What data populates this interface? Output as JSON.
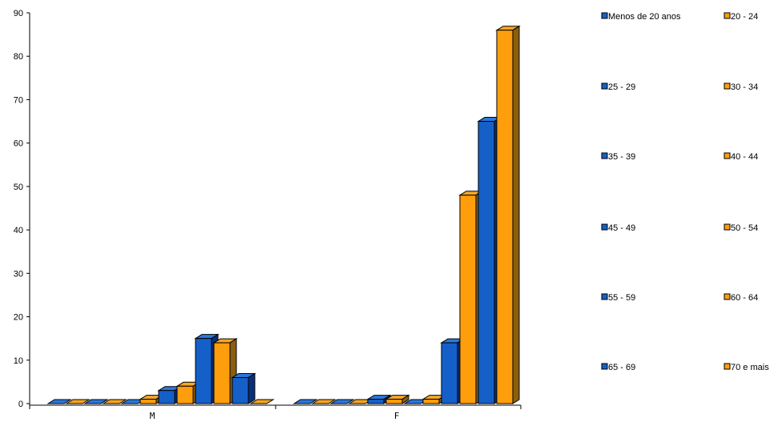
{
  "chart_data": {
    "type": "bar",
    "style": "3d-clustered",
    "categories": [
      "M",
      "F"
    ],
    "ylim": [
      0,
      90
    ],
    "yticks": [
      0,
      10,
      20,
      30,
      40,
      50,
      60,
      70,
      80,
      90
    ],
    "grid": false,
    "legend": "right",
    "series": [
      {
        "name": "Menos de 20 anos",
        "values": [
          0,
          0
        ]
      },
      {
        "name": "20 - 24",
        "values": [
          0,
          0
        ]
      },
      {
        "name": "25 - 29",
        "values": [
          0,
          0
        ]
      },
      {
        "name": "30 - 34",
        "values": [
          0,
          0
        ]
      },
      {
        "name": "35 - 39",
        "values": [
          0,
          1
        ]
      },
      {
        "name": "40 - 44",
        "values": [
          1,
          1
        ]
      },
      {
        "name": "45 - 49",
        "values": [
          3,
          0
        ]
      },
      {
        "name": "50 - 54",
        "values": [
          4,
          1
        ]
      },
      {
        "name": "55 - 59",
        "values": [
          15,
          14
        ]
      },
      {
        "name": "60 - 64",
        "values": [
          14,
          48
        ]
      },
      {
        "name": "65 - 69",
        "values": [
          6,
          65
        ]
      },
      {
        "name": "70 e mais",
        "values": [
          0,
          86
        ]
      }
    ],
    "colors": {
      "blue": "#1560c8",
      "blue_side": "#0a2f7a",
      "blue_top": "#2a78dc",
      "orange": "#ff9e0d",
      "orange_side": "#8a5e10",
      "orange_top": "#f5a623"
    }
  }
}
